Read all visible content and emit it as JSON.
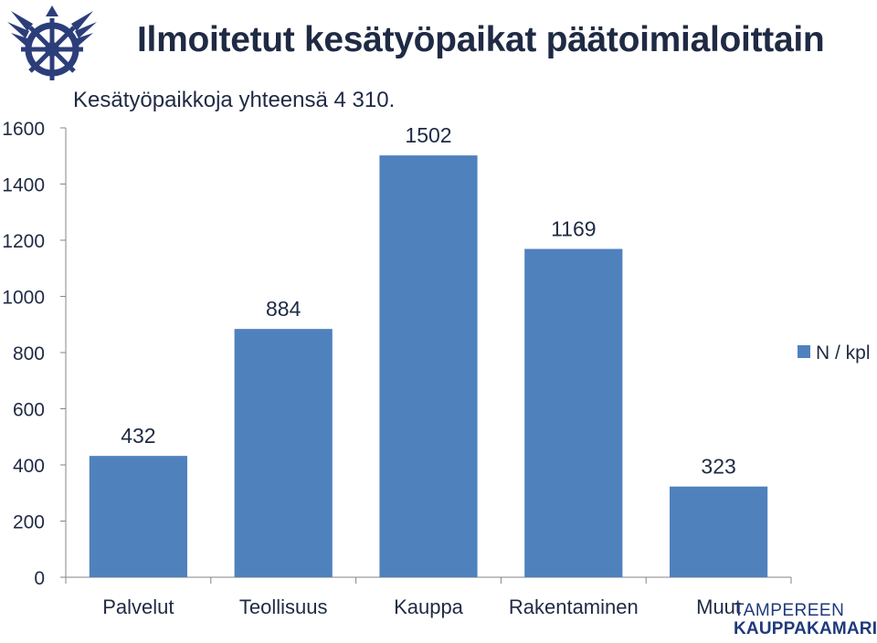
{
  "header": {
    "title": "Ilmoitetut kesätyöpaikat päätoimialoittain",
    "subtitle": "Kesätyöpaikkoja yhteensä  4 310."
  },
  "brand": {
    "line1": "TAMPEREEN",
    "line2": "KAUPPAKAMARI",
    "logo_icon": "tampere-chamber-ship-wheel-logo",
    "color": "#1f3a7a"
  },
  "chart_data": {
    "type": "bar",
    "title": "Ilmoitetut kesätyöpaikat päätoimialoittain",
    "subtitle": "Kesätyöpaikkoja yhteensä  4 310.",
    "categories": [
      "Palvelut",
      "Teollisuus",
      "Kauppa",
      "Rakentaminen",
      "Muut"
    ],
    "series": [
      {
        "name": "N / kpl",
        "values": [
          432,
          884,
          1502,
          1169,
          323
        ],
        "color": "#4f81bd"
      }
    ],
    "data_labels": [
      "432",
      "884",
      "1502",
      "1169",
      "323"
    ],
    "ylim": [
      0,
      1600
    ],
    "yticks": [
      "0",
      "200",
      "400",
      "600",
      "800",
      "1000",
      "1200",
      "1400",
      "1600"
    ],
    "ytick_values": [
      0,
      200,
      400,
      600,
      800,
      1000,
      1200,
      1400,
      1600
    ],
    "xlabel": "",
    "ylabel": "",
    "grid": false,
    "legend": "right"
  }
}
